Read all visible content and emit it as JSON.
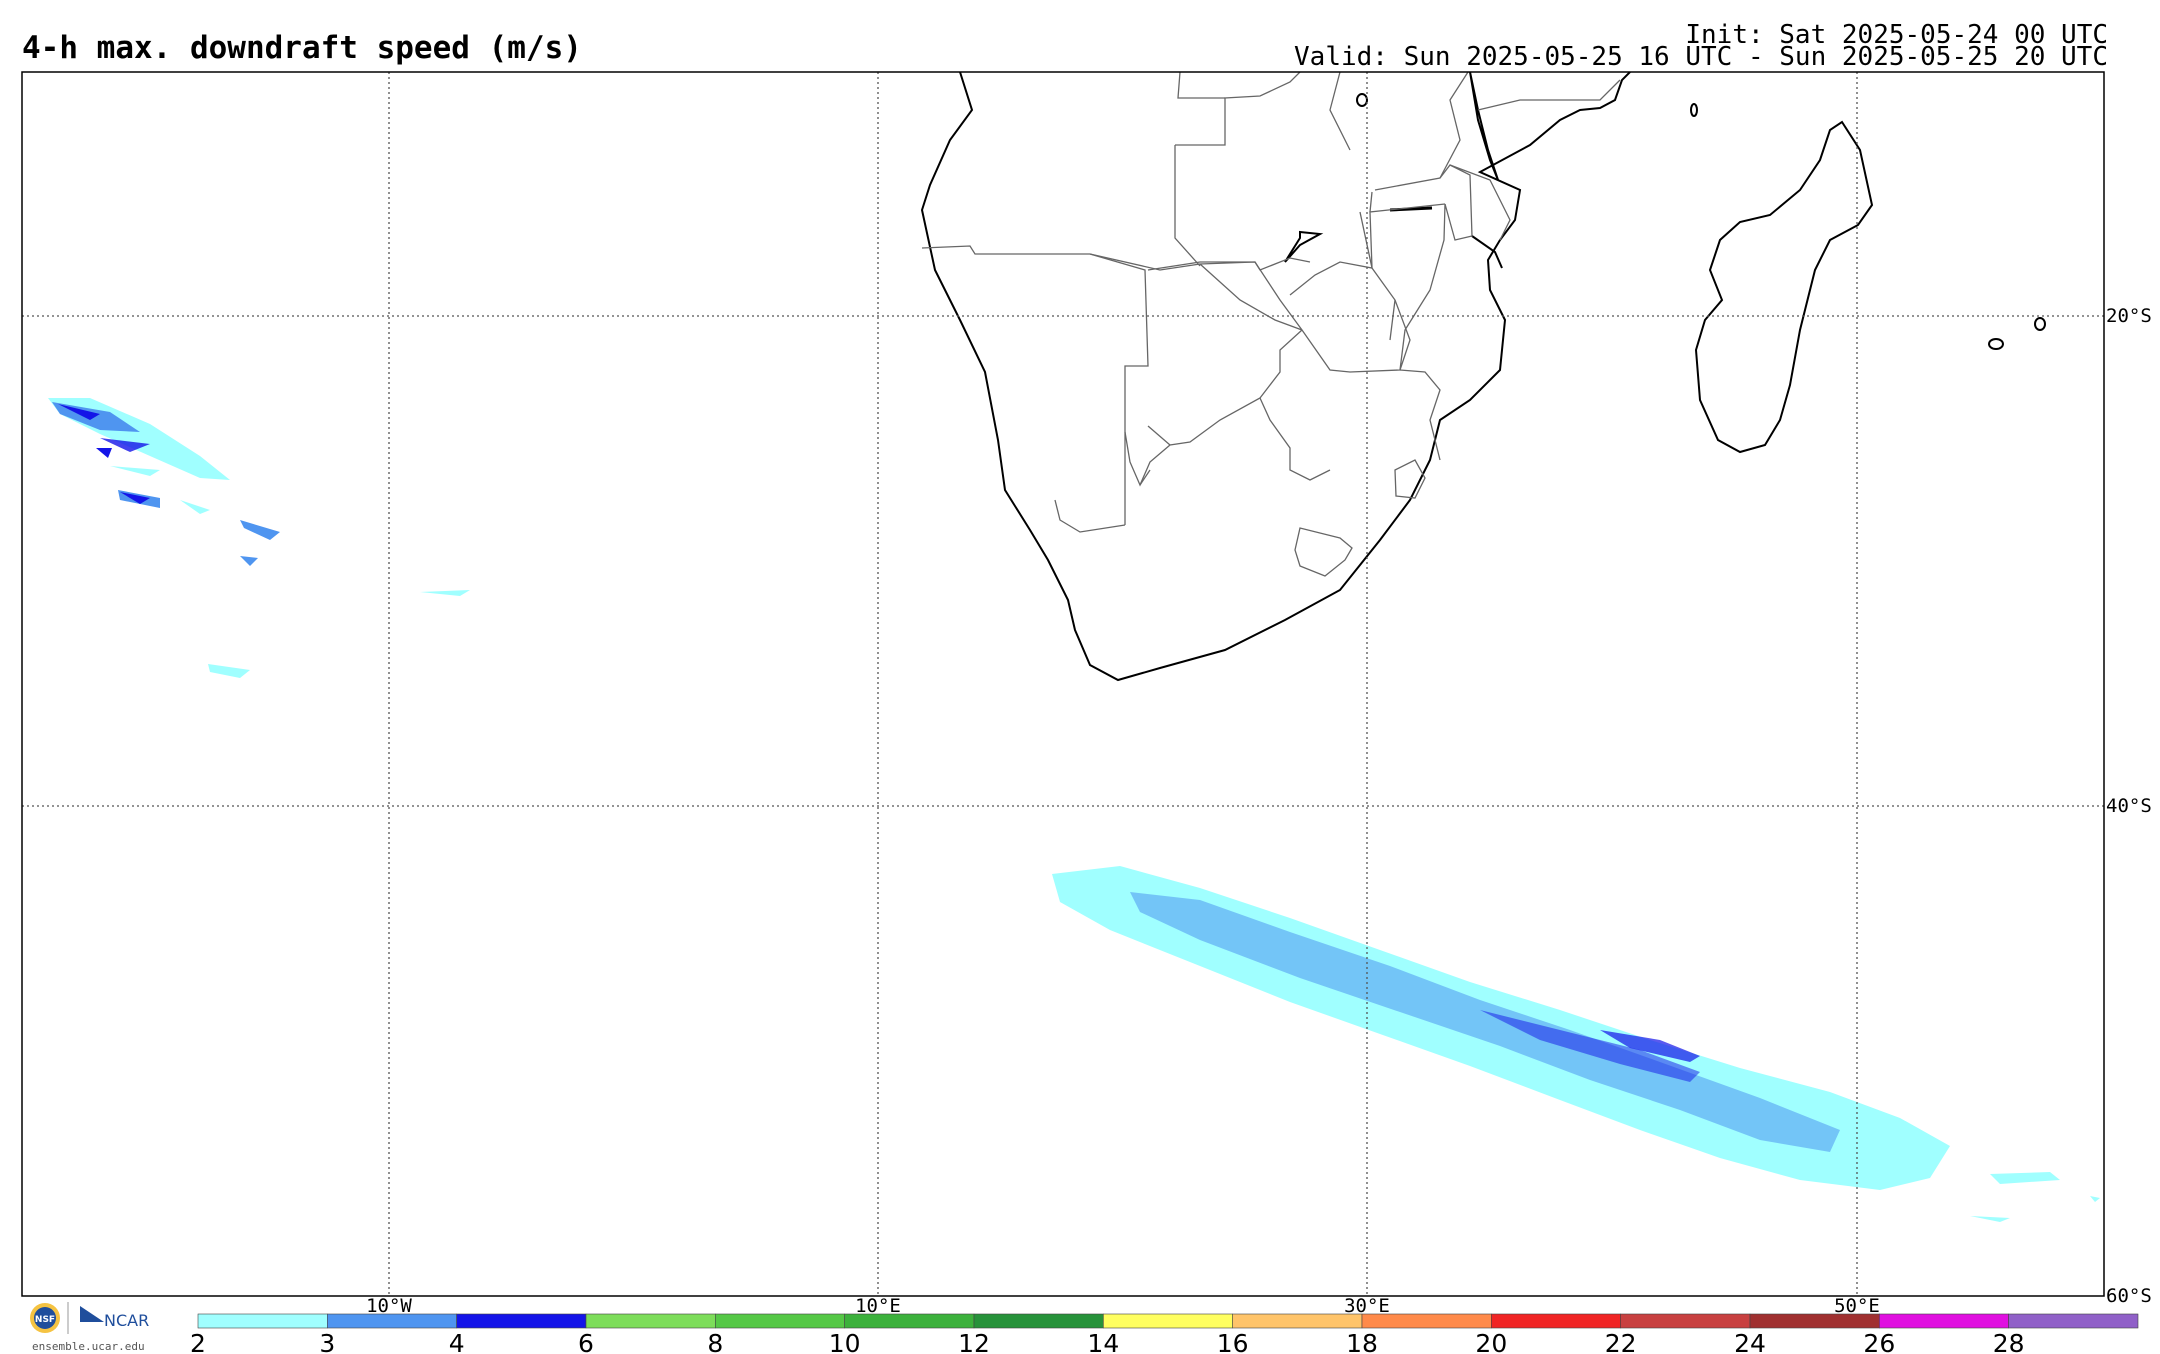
{
  "header": {
    "title": "4-h max. downdraft speed (m/s)",
    "init": "Init: Sat 2025-05-24 00 UTC",
    "valid": "Valid: Sun 2025-05-25 16 UTC - Sun 2025-05-25 20 UTC"
  },
  "map": {
    "region": "Southern Africa and South Atlantic",
    "lon_labels": [
      "10°W",
      "10°E",
      "30°E",
      "50°E"
    ],
    "lat_labels": [
      "20°S",
      "40°S",
      "60°S"
    ]
  },
  "colorbar": {
    "ticks": [
      "2",
      "3",
      "4",
      "6",
      "8",
      "10",
      "12",
      "14",
      "16",
      "18",
      "20",
      "22",
      "24",
      "26",
      "28"
    ],
    "colors": [
      "#a0ffff",
      "#4f95f0",
      "#1414e8",
      "#7ddd5a",
      "#55c846",
      "#3cb13c",
      "#27923a",
      "#ffff60",
      "#ffc46a",
      "#ff8a4a",
      "#f02424",
      "#c84040",
      "#a03030",
      "#e010e0",
      "#9060c8"
    ]
  },
  "logos": {
    "nsf": "NSF",
    "ncar": "NCAR",
    "site": "ensemble.ucar.edu"
  }
}
